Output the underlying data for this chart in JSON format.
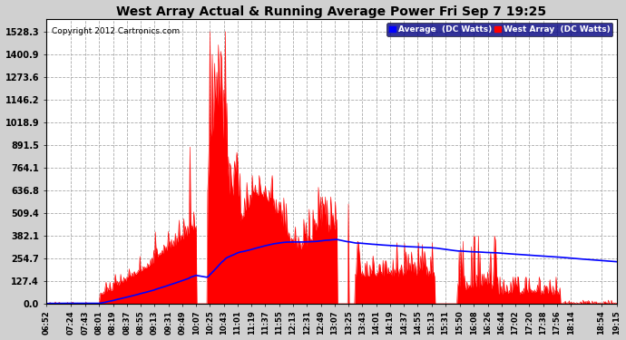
{
  "title": "West Array Actual & Running Average Power Fri Sep 7 19:25",
  "copyright": "Copyright 2012 Cartronics.com",
  "legend_avg": "Average  (DC Watts)",
  "legend_west": "West Array  (DC Watts)",
  "yticks": [
    0.0,
    127.4,
    254.7,
    382.1,
    509.4,
    636.8,
    764.1,
    891.5,
    1018.9,
    1146.2,
    1273.6,
    1400.9,
    1528.3
  ],
  "ymax": 1600,
  "bg_color": "#d0d0d0",
  "plot_bg": "#ffffff",
  "grid_color": "#aaaaaa",
  "bar_color": "#ff0000",
  "avg_color": "#0000ff",
  "title_color": "#000000",
  "xtick_labels": [
    "06:52",
    "07:24",
    "07:43",
    "08:01",
    "08:19",
    "08:37",
    "08:55",
    "09:13",
    "09:31",
    "09:49",
    "10:07",
    "10:25",
    "10:43",
    "11:01",
    "11:19",
    "11:37",
    "11:55",
    "12:13",
    "12:31",
    "12:49",
    "13:07",
    "13:25",
    "13:43",
    "14:01",
    "14:19",
    "14:37",
    "14:55",
    "15:13",
    "15:31",
    "15:50",
    "16:08",
    "16:26",
    "16:44",
    "17:02",
    "17:20",
    "17:38",
    "17:56",
    "18:14",
    "18:54",
    "19:15"
  ]
}
